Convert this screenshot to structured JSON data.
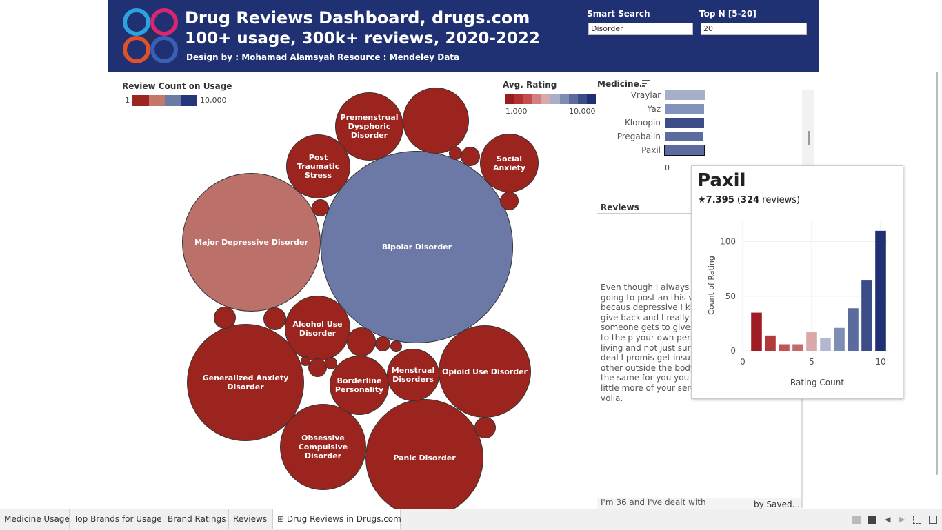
{
  "header": {
    "title": "Drug Reviews Dashboard, drugs.com",
    "subtitle": "100+ usage, 300k+ reviews, 2020-2022",
    "design": "Design by : Mohamad Alamsyah",
    "resource": "Resource  : Mendeley Data",
    "smart_search_label": "Smart Search",
    "smart_search_value": "Disorder",
    "topn_label": "Top N [5-20]",
    "topn_value": "20"
  },
  "review_legend": {
    "title": "Review Count on Usage",
    "min": "1",
    "max": "10,000",
    "colors": [
      "#9b2520",
      "#c4776b",
      "#6d7aa4",
      "#26367a"
    ]
  },
  "rating_legend": {
    "title": "Avg. Rating",
    "min": "1.000",
    "max": "10.000",
    "colors": [
      "#9b1c1c",
      "#b33030",
      "#c44e4e",
      "#d38080",
      "#d9a8a8",
      "#a7b0c8",
      "#7f8cb3",
      "#5c6b9e",
      "#3c4c88",
      "#1f3073"
    ]
  },
  "bubbles": [
    {
      "label": "Bipolar Disorder",
      "color": "#6c78a5"
    },
    {
      "label": "Major Depressive Disorder",
      "color": "#bb716a"
    },
    {
      "label": "Generalized Anxiety Disorder",
      "color": "#9b251e"
    },
    {
      "label": "Panic Disorder",
      "color": "#9b251e"
    },
    {
      "label": "Opioid Use Disorder",
      "color": "#9b251e"
    },
    {
      "label": "Obsessive Compulsive Disorder",
      "color": "#9b251e"
    },
    {
      "label": "Premenstrual Dysphoric Disorder",
      "color": "#9b251e"
    },
    {
      "label": "Post Traumatic Stress",
      "color": "#9b251e"
    },
    {
      "label": "Social Anxiety",
      "color": "#9b251e"
    },
    {
      "label": "Alcohol Use Disorder",
      "color": "#9b251e"
    },
    {
      "label": "Borderline Personality",
      "color": "#9b251e"
    },
    {
      "label": "Menstrual Disorders",
      "color": "#9b251e"
    }
  ],
  "medicine": {
    "title": "Medicine..",
    "items": [
      {
        "label": "Vraylar",
        "color": "#a7aec8"
      },
      {
        "label": "Yaz",
        "color": "#8591bd"
      },
      {
        "label": "Klonopin",
        "color": "#3c4c88"
      },
      {
        "label": "Pregabalin",
        "color": "#5c6b9e"
      },
      {
        "label": "Paxil",
        "color": "#5c6b9e"
      }
    ],
    "axis_ticks": [
      "0",
      "500",
      "1000"
    ]
  },
  "reviews": {
    "title": "Reviews",
    "text": "Even though I always s never going to post an this webpages becaus depressive I kinda feel give back and I really r that someone gets to gives a try not to the p your own person and t living and not just surv such big deal I promis get insulin from other outside the body it is kinda the same for you you just need a little more of your serotonin an voila.",
    "next_text": "I'm 36 and I've dealt with",
    "next_by": "by Saved..."
  },
  "tooltip": {
    "drug": "Paxil",
    "rating": "7.395",
    "reviews_count": "324",
    "reviews_suffix": "reviews)",
    "open_paren": "(",
    "xlabel": "Rating Count",
    "ylabel": "Count of Rating"
  },
  "chart_data": {
    "type": "bar",
    "title": "",
    "xlabel": "Rating Count",
    "ylabel": "Count of Rating",
    "x": [
      1,
      2,
      3,
      4,
      5,
      6,
      7,
      8,
      9,
      10
    ],
    "values": [
      35,
      14,
      6,
      6,
      17,
      12,
      21,
      39,
      65,
      110
    ],
    "colors": [
      "#a01c22",
      "#b33a3a",
      "#c25454",
      "#c46a6a",
      "#d9a8a8",
      "#b3b8d0",
      "#7f8cb3",
      "#5c6b9e",
      "#3c4c88",
      "#1f3073"
    ],
    "xlim": [
      0,
      10.6
    ],
    "ylim": [
      0,
      120
    ],
    "xticks": [
      "0",
      "5",
      "10"
    ],
    "yticks": [
      "0",
      "50",
      "100"
    ]
  },
  "tabs": [
    {
      "label": "Medicine Usage"
    },
    {
      "label": "Top Brands for Usage"
    },
    {
      "label": "Brand Ratings"
    },
    {
      "label": "Reviews"
    },
    {
      "label": "Drug Reviews in Drugs.com"
    }
  ]
}
